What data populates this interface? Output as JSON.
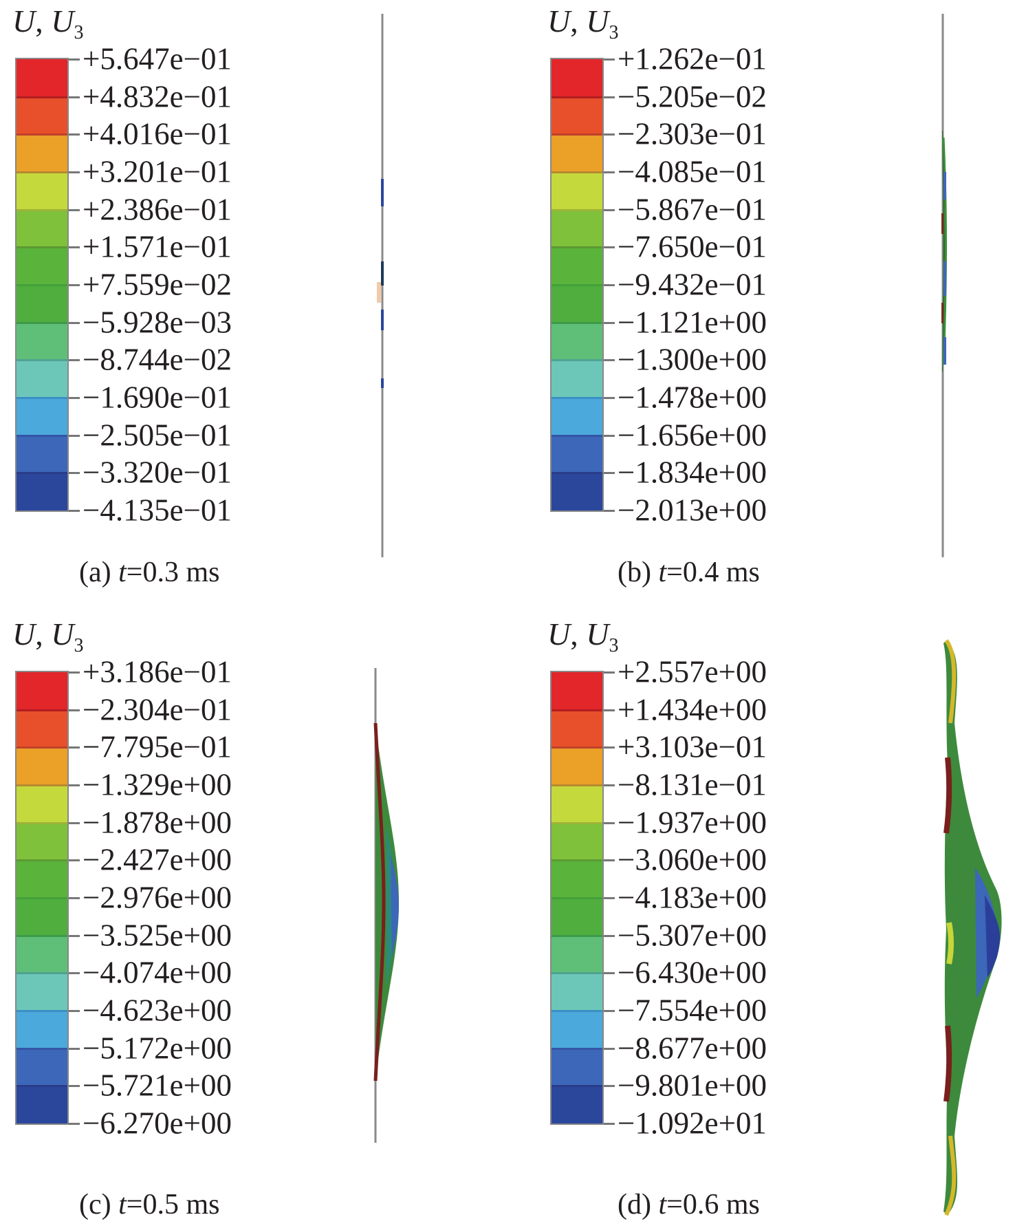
{
  "figure": {
    "legend_title_main": "U",
    "legend_title_sep": ", ",
    "legend_title_comp": "U",
    "legend_title_sub": "3",
    "band_colors": [
      "#e2262a",
      "#e8502b",
      "#eba028",
      "#c4d93c",
      "#7fc13a",
      "#5ab33a",
      "#4fae3e",
      "#5fbf78",
      "#6cc7b9",
      "#4ba9db",
      "#3d67b8",
      "#2b479c"
    ],
    "band_line_colors": [
      "#b21e22",
      "#c0402a",
      "#b78a2e",
      "#9db336",
      "#5b9a33",
      "#44a03a",
      "#3d9a4b",
      "#4fa392",
      "#3d8fc4",
      "#3455a5",
      "#2a3c8a"
    ]
  },
  "panels": [
    {
      "id": "a",
      "caption_prefix": "(a) ",
      "caption_var": "t",
      "caption_value": "=0.3 ms",
      "legend_values": [
        "+5.647e−01",
        "+4.832e−01",
        "+4.016e−01",
        "+3.201e−01",
        "+2.386e−01",
        "+1.571e−01",
        "+7.559e−02",
        "−5.928e−03",
        "−8.744e−02",
        "−1.690e−01",
        "−2.505e−01",
        "−3.320e−01",
        "−4.135e−01"
      ]
    },
    {
      "id": "b",
      "caption_prefix": "(b) ",
      "caption_var": "t",
      "caption_value": "=0.4 ms",
      "legend_values": [
        "+1.262e−01",
        "−5.205e−02",
        "−2.303e−01",
        "−4.085e−01",
        "−5.867e−01",
        "−7.650e−01",
        "−9.432e−01",
        "−1.121e+00",
        "−1.300e+00",
        "−1.478e+00",
        "−1.656e+00",
        "−1.834e+00",
        "−2.013e+00"
      ]
    },
    {
      "id": "c",
      "caption_prefix": "(c) ",
      "caption_var": "t",
      "caption_value": "=0.5 ms",
      "legend_values": [
        "+3.186e−01",
        "−2.304e−01",
        "−7.795e−01",
        "−1.329e+00",
        "−1.878e+00",
        "−2.427e+00",
        "−2.976e+00",
        "−3.525e+00",
        "−4.074e+00",
        "−4.623e+00",
        "−5.172e+00",
        "−5.721e+00",
        "−6.270e+00"
      ]
    },
    {
      "id": "d",
      "caption_prefix": "(d) ",
      "caption_var": "t",
      "caption_value": "=0.6 ms",
      "legend_values": [
        "+2.557e+00",
        "+1.434e+00",
        "+3.103e−01",
        "−8.131e−01",
        "−1.937e+00",
        "−3.060e+00",
        "−4.183e+00",
        "−5.307e+00",
        "−6.430e+00",
        "−7.554e+00",
        "−8.677e+00",
        "−9.801e+00",
        "−1.092e+01"
      ]
    }
  ]
}
